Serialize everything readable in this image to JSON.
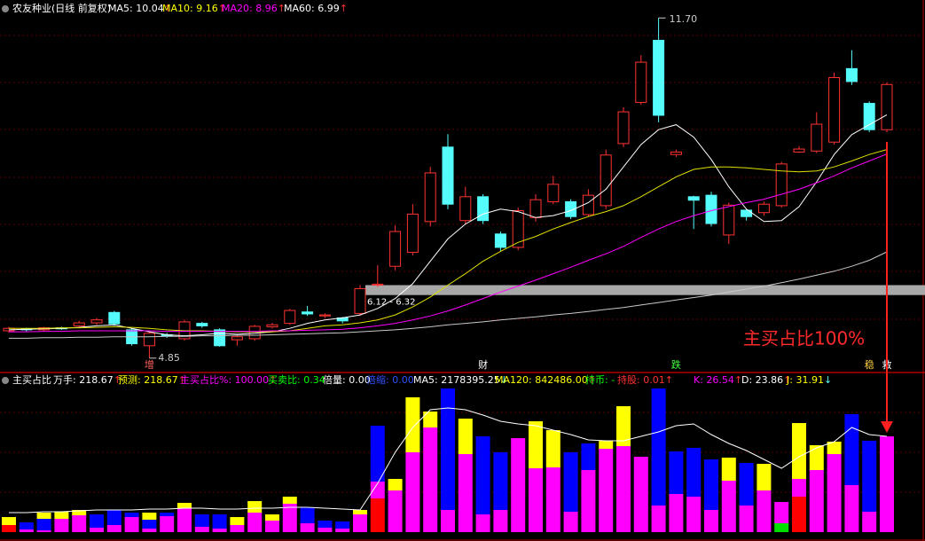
{
  "header": {
    "title": "农友种业(日线 前复权)",
    "indicators": [
      {
        "label": "MA5: 10.04",
        "color": "#ffffff",
        "arrow": "↑",
        "arrow_color": "#ff3232"
      },
      {
        "label": "MA10: 9.16",
        "color": "#ffff00",
        "arrow": "↑",
        "arrow_color": "#ff3232"
      },
      {
        "label": "MA20: 8.96",
        "color": "#ff00ff",
        "arrow": "↑",
        "arrow_color": "#ff3232"
      },
      {
        "label": "MA60: 6.99",
        "color": "#ffffff",
        "arrow": "↑",
        "arrow_color": "#ff3232"
      }
    ]
  },
  "chart_data": [
    {
      "type": "candlestick",
      "up_color": "#ff3232",
      "down_color": "#54fcfc",
      "ylim": [
        4.65,
        11.74
      ],
      "open": [
        5.4,
        5.44,
        5.42,
        5.46,
        5.5,
        5.56,
        5.77,
        5.42,
        5.1,
        5.32,
        5.24,
        5.55,
        5.42,
        5.22,
        5.24,
        5.48,
        5.55,
        5.78,
        5.7,
        5.66,
        5.75,
        6.32,
        6.7,
        6.98,
        7.6,
        9.1,
        7.62,
        8.1,
        7.35,
        7.08,
        7.68,
        8.0,
        8.0,
        7.74,
        7.92,
        9.17,
        10.0,
        11.25,
        8.95,
        8.1,
        8.13,
        7.33,
        7.83,
        7.78,
        7.92,
        9.0,
        9.02,
        9.2,
        10.68,
        9.98,
        9.45
      ],
      "high": [
        5.48,
        5.46,
        5.48,
        5.48,
        5.6,
        5.66,
        5.8,
        5.45,
        5.38,
        5.36,
        5.62,
        5.58,
        5.45,
        5.3,
        5.52,
        5.56,
        5.84,
        5.9,
        5.75,
        5.68,
        6.32,
        6.72,
        7.52,
        7.95,
        8.7,
        9.36,
        8.3,
        8.15,
        7.4,
        7.88,
        8.15,
        8.52,
        8.05,
        8.25,
        9.05,
        9.9,
        10.95,
        11.7,
        9.05,
        8.12,
        8.2,
        7.98,
        7.86,
        8.0,
        8.8,
        9.12,
        9.8,
        10.6,
        11.05,
        10.02,
        10.4
      ],
      "low": [
        5.36,
        5.38,
        5.4,
        5.42,
        5.48,
        5.52,
        5.5,
        5.1,
        4.85,
        5.26,
        5.2,
        5.46,
        5.08,
        5.1,
        5.2,
        5.45,
        5.52,
        5.7,
        5.66,
        5.55,
        5.7,
        6.28,
        6.62,
        6.92,
        7.5,
        7.85,
        7.55,
        7.55,
        7.0,
        7.02,
        7.6,
        7.95,
        7.65,
        7.7,
        7.85,
        9.1,
        9.95,
        9.6,
        8.9,
        7.45,
        7.5,
        7.15,
        7.62,
        7.72,
        7.88,
        8.98,
        8.98,
        9.15,
        10.35,
        9.4,
        9.4
      ],
      "close": [
        5.45,
        5.42,
        5.46,
        5.44,
        5.56,
        5.62,
        5.54,
        5.14,
        5.35,
        5.3,
        5.58,
        5.5,
        5.1,
        5.28,
        5.49,
        5.52,
        5.81,
        5.74,
        5.72,
        5.6,
        6.25,
        6.34,
        7.4,
        7.75,
        8.58,
        7.95,
        8.1,
        7.62,
        7.08,
        7.82,
        8.04,
        8.35,
        7.7,
        8.13,
        8.94,
        9.81,
        10.81,
        9.74,
        9.0,
        8.03,
        7.56,
        7.93,
        7.7,
        7.95,
        8.76,
        9.06,
        9.56,
        10.5,
        10.42,
        9.45,
        10.36
      ],
      "series": [
        {
          "color": "#ffffff",
          "values": [
            5.42,
            5.43,
            5.44,
            5.45,
            5.47,
            5.5,
            5.52,
            5.45,
            5.38,
            5.32,
            5.3,
            5.32,
            5.35,
            5.33,
            5.35,
            5.38,
            5.45,
            5.55,
            5.62,
            5.66,
            5.72,
            5.85,
            6.05,
            6.35,
            6.8,
            7.25,
            7.55,
            7.75,
            7.85,
            7.8,
            7.68,
            7.72,
            7.82,
            7.98,
            8.25,
            8.7,
            9.15,
            9.45,
            9.55,
            9.3,
            8.85,
            8.3,
            7.85,
            7.6,
            7.62,
            7.9,
            8.4,
            8.95,
            9.35,
            9.55,
            9.75
          ]
        },
        {
          "color": "#e0e000",
          "values": [
            5.45,
            5.45,
            5.45,
            5.46,
            5.46,
            5.47,
            5.48,
            5.47,
            5.45,
            5.42,
            5.4,
            5.4,
            5.39,
            5.38,
            5.38,
            5.38,
            5.4,
            5.45,
            5.5,
            5.52,
            5.56,
            5.62,
            5.72,
            5.88,
            6.08,
            6.32,
            6.55,
            6.8,
            7.0,
            7.18,
            7.3,
            7.45,
            7.58,
            7.7,
            7.8,
            7.92,
            8.1,
            8.3,
            8.5,
            8.65,
            8.7,
            8.7,
            8.68,
            8.65,
            8.62,
            8.6,
            8.62,
            8.7,
            8.82,
            8.95,
            9.05
          ]
        },
        {
          "color": "#ff00ff",
          "values": [
            5.38,
            5.38,
            5.39,
            5.39,
            5.4,
            5.4,
            5.4,
            5.4,
            5.4,
            5.39,
            5.39,
            5.39,
            5.39,
            5.39,
            5.39,
            5.4,
            5.4,
            5.41,
            5.42,
            5.43,
            5.46,
            5.5,
            5.55,
            5.62,
            5.7,
            5.8,
            5.92,
            6.05,
            6.18,
            6.3,
            6.42,
            6.55,
            6.68,
            6.82,
            6.95,
            7.1,
            7.28,
            7.45,
            7.6,
            7.72,
            7.82,
            7.9,
            7.98,
            8.05,
            8.15,
            8.25,
            8.38,
            8.52,
            8.68,
            8.82,
            8.96
          ]
        },
        {
          "color": "#c8c8c8",
          "values": [
            5.25,
            5.25,
            5.26,
            5.26,
            5.27,
            5.27,
            5.28,
            5.28,
            5.28,
            5.29,
            5.29,
            5.3,
            5.3,
            5.31,
            5.31,
            5.32,
            5.33,
            5.34,
            5.35,
            5.36,
            5.38,
            5.4,
            5.42,
            5.45,
            5.48,
            5.52,
            5.55,
            5.58,
            5.62,
            5.65,
            5.68,
            5.72,
            5.75,
            5.79,
            5.83,
            5.87,
            5.92,
            5.97,
            6.02,
            6.07,
            6.12,
            6.18,
            6.24,
            6.3,
            6.37,
            6.44,
            6.52,
            6.6,
            6.7,
            6.82,
            6.99
          ]
        }
      ],
      "band": {
        "values": [
          6.12,
          6.32
        ],
        "label": "6.12 - 6.32",
        "color": "#a8a8a8"
      },
      "annotations": [
        {
          "value": 11.7,
          "label": "11.70"
        },
        {
          "value": 4.85,
          "label": "4.85"
        }
      ],
      "tags": [
        null,
        null,
        null,
        null,
        null,
        null,
        null,
        null,
        {
          "text": "增",
          "color": "#ff6060"
        },
        null,
        null,
        null,
        null,
        null,
        null,
        null,
        null,
        null,
        null,
        null,
        null,
        null,
        null,
        null,
        null,
        null,
        null,
        {
          "text": "财",
          "color": "#ffffff"
        },
        null,
        null,
        null,
        null,
        null,
        null,
        null,
        null,
        null,
        null,
        {
          "text": "跌",
          "color": "#40ff40"
        },
        null,
        null,
        null,
        null,
        null,
        null,
        null,
        null,
        null,
        null,
        {
          "text": "稳",
          "color": "#ffd040"
        },
        {
          "text": "救",
          "color": "#ffffff"
        }
      ]
    },
    {
      "type": "stacked_bar",
      "title": "主买占比",
      "indicators": [
        {
          "label": "万手: 218.67",
          "color": "#ffffff",
          "arrow": "↑",
          "arrow_color": "#ff3232"
        },
        {
          "label": "预测: 218.67",
          "color": "#ffff00",
          "arrow": "↑",
          "arrow_color": "#ff3232"
        },
        {
          "label": "主买占比%: 100.00",
          "color": "#ff00ff",
          "arrow": "↑",
          "arrow_color": "#ff3232"
        },
        {
          "label": "买卖比: 0.34",
          "color": "#00ff00"
        },
        {
          "label": "倍量: 0.00",
          "color": "#ffffff"
        },
        {
          "label": "倍缩: 0.00",
          "color": "#3050ff"
        },
        {
          "label": "MA5: 2178395.25",
          "color": "#ffffff",
          "arrow": "↓",
          "arrow_color": "#54fcfc"
        },
        {
          "label": "MA120: 842486.00",
          "color": "#ffff00",
          "arrow": "↑",
          "arrow_color": "#ff3232"
        },
        {
          "label": "持币: -",
          "color": "#00ff00"
        },
        {
          "label": "持股: 0.01",
          "color": "#ff3232",
          "arrow": "↑",
          "arrow_color": "#ff3232"
        },
        {
          "label": "K: 26.54",
          "color": "#ff00ff",
          "arrow": "↑",
          "arrow_color": "#ff3232"
        },
        {
          "label": "D: 23.86",
          "color": "#ffffff",
          "arrow": "↑",
          "arrow_color": "#ff3232"
        },
        {
          "label": "J: 31.91",
          "color": "#ffff00",
          "arrow": "↓",
          "arrow_color": "#54fcfc"
        }
      ],
      "ylim": [
        0,
        165
      ],
      "series": [
        {
          "color": "#ff0000",
          "values": [
            8,
            0,
            0,
            0,
            0,
            0,
            0,
            0,
            0,
            0,
            0,
            0,
            0,
            0,
            0,
            0,
            0,
            0,
            0,
            0,
            0,
            38,
            0,
            0,
            0,
            0,
            0,
            0,
            0,
            0,
            0,
            0,
            0,
            0,
            0,
            0,
            0,
            0,
            0,
            0,
            0,
            0,
            0,
            0,
            0,
            40,
            0,
            0,
            0,
            0,
            0
          ]
        },
        {
          "color": "#00e000",
          "values": [
            0,
            0,
            0,
            0,
            0,
            0,
            0,
            0,
            0,
            0,
            0,
            0,
            0,
            0,
            0,
            0,
            0,
            0,
            0,
            0,
            0,
            0,
            0,
            0,
            0,
            0,
            0,
            0,
            0,
            0,
            0,
            0,
            0,
            0,
            0,
            0,
            0,
            0,
            0,
            0,
            0,
            0,
            0,
            0,
            10,
            0,
            0,
            0,
            0,
            0,
            0
          ]
        },
        {
          "color": "#ff00ff",
          "values": [
            0,
            3,
            2,
            15,
            19,
            5,
            8,
            17,
            4,
            18,
            27,
            6,
            4,
            8,
            22,
            13,
            32,
            10,
            5,
            4,
            20,
            19,
            47,
            90,
            118,
            25,
            88,
            20,
            25,
            106,
            72,
            73,
            23,
            70,
            94,
            97,
            85,
            30,
            43,
            40,
            25,
            58,
            30,
            47,
            24,
            20,
            70,
            88,
            53,
            23,
            108
          ]
        },
        {
          "color": "#0000ff",
          "values": [
            0,
            8,
            13,
            0,
            0,
            15,
            17,
            5,
            10,
            4,
            0,
            14,
            16,
            0,
            0,
            0,
            0,
            18,
            8,
            8,
            0,
            63,
            0,
            0,
            0,
            137,
            0,
            88,
            65,
            0,
            0,
            0,
            67,
            30,
            0,
            0,
            0,
            132,
            48,
            55,
            57,
            0,
            48,
            0,
            0,
            0,
            0,
            0,
            80,
            80,
            0
          ]
        },
        {
          "color": "#ffff00",
          "values": [
            9,
            0,
            7,
            8,
            6,
            0,
            0,
            0,
            8,
            0,
            6,
            0,
            0,
            9,
            13,
            7,
            8,
            0,
            0,
            0,
            5,
            0,
            13,
            62,
            18,
            0,
            40,
            0,
            0,
            0,
            53,
            42,
            0,
            0,
            9,
            45,
            0,
            0,
            0,
            0,
            0,
            26,
            0,
            30,
            0,
            63,
            28,
            14,
            0,
            0,
            0
          ]
        }
      ],
      "lines": [
        {
          "color": "#ffffff",
          "values": [
            22,
            22,
            23,
            23,
            24,
            25,
            25,
            25,
            26,
            26,
            27,
            27,
            26,
            26,
            27,
            27,
            28,
            28,
            27,
            26,
            25,
            55,
            90,
            118,
            138,
            140,
            138,
            132,
            125,
            122,
            120,
            115,
            110,
            104,
            103,
            103,
            108,
            113,
            120,
            122,
            110,
            100,
            92,
            82,
            72,
            85,
            95,
            102,
            118,
            110,
            108
          ]
        }
      ],
      "annotation": "主买占比100%"
    }
  ]
}
